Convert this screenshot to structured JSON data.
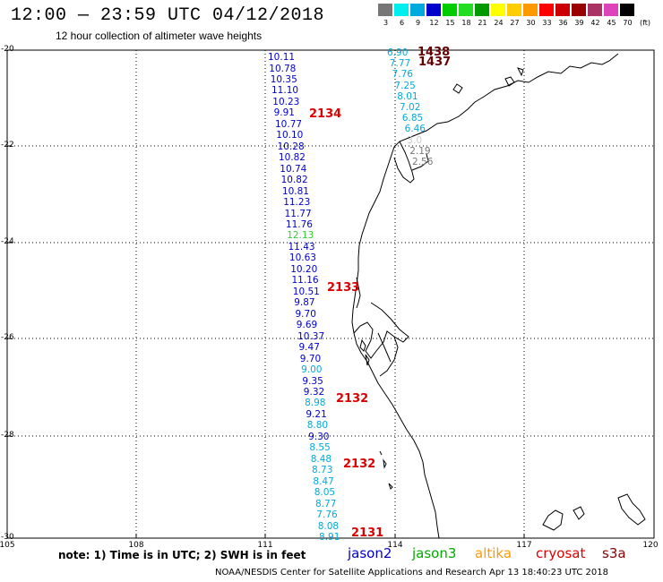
{
  "header": {
    "title": "12:00 — 23:59 UTC 04/12/2018",
    "subtitle": "12 hour collection of altimeter wave heights"
  },
  "legend": {
    "unit": "(ft)",
    "bins": [
      {
        "label": "3",
        "color": "#777777"
      },
      {
        "label": "6",
        "color": "#00eeee"
      },
      {
        "label": "9",
        "color": "#00aadd"
      },
      {
        "label": "12",
        "color": "#0000cc"
      },
      {
        "label": "15",
        "color": "#00cc00"
      },
      {
        "label": "18",
        "color": "#22dd22"
      },
      {
        "label": "21",
        "color": "#009900"
      },
      {
        "label": "24",
        "color": "#ffff00"
      },
      {
        "label": "27",
        "color": "#ffcc00"
      },
      {
        "label": "30",
        "color": "#ff9900"
      },
      {
        "label": "33",
        "color": "#ff0000"
      },
      {
        "label": "36",
        "color": "#cc0000"
      },
      {
        "label": "39",
        "color": "#990000"
      },
      {
        "label": "42",
        "color": "#aa3366"
      },
      {
        "label": "45",
        "color": "#dd44bb"
      },
      {
        "label": "70",
        "color": "#000000"
      }
    ]
  },
  "axes": {
    "lat_labels": [
      "-20",
      "-22",
      "-24",
      "-26",
      "-28",
      "-30"
    ],
    "lon_labels": [
      "105",
      "108",
      "111",
      "114",
      "117",
      "120"
    ]
  },
  "tracks": [
    {
      "satellite": "jason2",
      "time": "2134",
      "observations": [
        {
          "v": "10.11",
          "c": "#0000cc"
        },
        {
          "v": "10.78",
          "c": "#0000cc"
        },
        {
          "v": "10.35",
          "c": "#0000cc"
        },
        {
          "v": "11.10",
          "c": "#0000cc"
        },
        {
          "v": "10.23",
          "c": "#0000cc"
        },
        {
          "v": "9.91",
          "c": "#0000cc"
        },
        {
          "v": "10.77",
          "c": "#0000cc"
        },
        {
          "v": "10.10",
          "c": "#0000cc"
        },
        {
          "v": "10.28",
          "c": "#0000cc"
        },
        {
          "v": "10.82",
          "c": "#0000cc"
        },
        {
          "v": "10.74",
          "c": "#0000cc"
        },
        {
          "v": "10.82",
          "c": "#0000cc"
        },
        {
          "v": "10.81",
          "c": "#0000cc"
        },
        {
          "v": "11.23",
          "c": "#0000cc"
        },
        {
          "v": "11.77",
          "c": "#0000cc"
        },
        {
          "v": "11.76",
          "c": "#0000cc"
        },
        {
          "v": "12.13",
          "c": "#33cc33"
        },
        {
          "v": "11.43",
          "c": "#0000cc"
        },
        {
          "v": "10.63",
          "c": "#0000cc"
        },
        {
          "v": "10.20",
          "c": "#0000cc"
        },
        {
          "v": "11.16",
          "c": "#0000cc"
        },
        {
          "v": "10.51",
          "c": "#0000cc"
        },
        {
          "v": "9.87",
          "c": "#0000cc"
        },
        {
          "v": "9.70",
          "c": "#0000cc"
        },
        {
          "v": "9.69",
          "c": "#0000cc"
        },
        {
          "v": "10.37",
          "c": "#0000cc"
        },
        {
          "v": "9.47",
          "c": "#0000cc"
        },
        {
          "v": "9.70",
          "c": "#0000cc"
        },
        {
          "v": "9.00",
          "c": "#00aadd"
        },
        {
          "v": "9.35",
          "c": "#0000cc"
        },
        {
          "v": "9.32",
          "c": "#0000cc"
        },
        {
          "v": "8.98",
          "c": "#00aadd"
        },
        {
          "v": "9.21",
          "c": "#0000cc"
        },
        {
          "v": "8.80",
          "c": "#00aadd"
        },
        {
          "v": "9.30",
          "c": "#0000cc"
        },
        {
          "v": "8.55",
          "c": "#00aadd"
        },
        {
          "v": "8.48",
          "c": "#00aadd"
        },
        {
          "v": "8.73",
          "c": "#00aadd"
        },
        {
          "v": "8.47",
          "c": "#00aadd"
        },
        {
          "v": "8.05",
          "c": "#00aadd"
        },
        {
          "v": "8.77",
          "c": "#00aadd"
        },
        {
          "v": "7.76",
          "c": "#00aadd"
        },
        {
          "v": "8.08",
          "c": "#00aadd"
        },
        {
          "v": "8.91",
          "c": "#00aadd"
        }
      ]
    },
    {
      "satellite": "jason2-north",
      "time": "",
      "observations": [
        {
          "v": "6.90",
          "c": "#00aadd"
        },
        {
          "v": "7.77",
          "c": "#00aadd"
        },
        {
          "v": "7.76",
          "c": "#00aadd"
        },
        {
          "v": "7.25",
          "c": "#00aadd"
        },
        {
          "v": "8.01",
          "c": "#00aadd"
        },
        {
          "v": "7.02",
          "c": "#00aadd"
        },
        {
          "v": "6.85",
          "c": "#00aadd"
        },
        {
          "v": "6.46",
          "c": "#00aadd"
        },
        {
          "v": "3.0",
          "c": "#cccccc"
        },
        {
          "v": "2.19",
          "c": "#777777"
        },
        {
          "v": "2.56",
          "c": "#777777"
        }
      ]
    }
  ],
  "time_labels": [
    {
      "text": "1438",
      "c": "#660000"
    },
    {
      "text": "1437",
      "c": "#660000"
    },
    {
      "text": "2134",
      "c": "#dd0000"
    },
    {
      "text": "2133",
      "c": "#dd0000"
    },
    {
      "text": "2132",
      "c": "#dd0000"
    },
    {
      "text": "2132",
      "c": "#dd0000"
    },
    {
      "text": "2131",
      "c": "#dd0000"
    }
  ],
  "footer": {
    "note": "note: 1) Time is in UTC; 2) SWH is in feet",
    "satellites": [
      {
        "name": "jason2",
        "color": "#0000cc"
      },
      {
        "name": "jason3",
        "color": "#00aa00"
      },
      {
        "name": "altika",
        "color": "#ff9900"
      },
      {
        "name": "cryosat",
        "color": "#dd0000"
      },
      {
        "name": "s3a",
        "color": "#880000"
      }
    ],
    "credit": "NOAA/NESDIS Center for Satellite Applications and Research    Apr 13 18:40:23 UTC 2018"
  }
}
